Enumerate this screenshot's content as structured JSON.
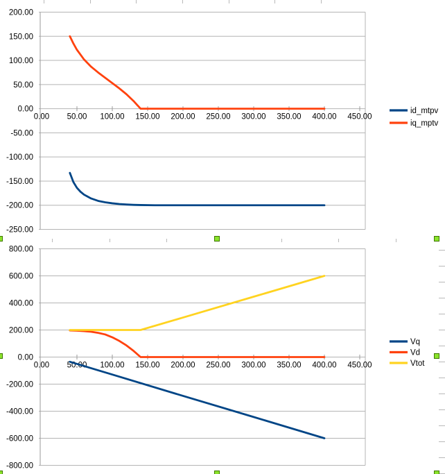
{
  "app_context": "spreadsheet-embedded-charts",
  "colors": {
    "series_blue": "#004586",
    "series_red": "#FF420E",
    "series_yellow": "#FFD320",
    "gridline": "#b4b4b4",
    "axis": "#9a9a9a",
    "label_text": "#000000",
    "sheet_gridline": "#b9b9b9",
    "handle_fill": "#8BE32C",
    "handle_border": "#3E7600"
  },
  "selection": {
    "selected_object": "bottom-chart-object",
    "handle_count": 8
  },
  "chart_data": [
    {
      "type": "line",
      "title": "",
      "xlabel": "",
      "ylabel": "",
      "grid": true,
      "legend_position": "right",
      "x_axis": {
        "min": 0,
        "max": 450,
        "tick_step": 50,
        "tick_labels": [
          "0.00",
          "50.00",
          "100.00",
          "150.00",
          "200.00",
          "250.00",
          "300.00",
          "350.00",
          "400.00",
          "450.00"
        ]
      },
      "y_axis": {
        "min": -250,
        "max": 200,
        "tick_step": 50,
        "tick_labels": [
          "200.00",
          "150.00",
          "100.00",
          "50.00",
          "0.00",
          "-50.00",
          "-100.00",
          "-150.00",
          "-200.00",
          "-250.00"
        ]
      },
      "series": [
        {
          "name": "id_mtpv",
          "color": "#004586",
          "x": [
            40,
            45,
            50,
            55,
            60,
            70,
            80,
            90,
            100,
            110,
            120,
            130,
            140,
            160,
            200,
            250,
            300,
            350,
            400
          ],
          "y": [
            -133,
            -152,
            -164,
            -172,
            -178,
            -186,
            -191,
            -194,
            -196,
            -197.5,
            -198.5,
            -199.2,
            -199.6,
            -200,
            -200,
            -200,
            -200,
            -200,
            -200
          ]
        },
        {
          "name": "iq_mptv",
          "color": "#FF420E",
          "x": [
            40,
            45,
            50,
            55,
            60,
            70,
            80,
            90,
            100,
            110,
            120,
            130,
            135,
            140,
            160,
            200,
            250,
            300,
            350,
            400
          ],
          "y": [
            150,
            135,
            122,
            112,
            102,
            87,
            75,
            64,
            53,
            42,
            30,
            16,
            8,
            0,
            0,
            0,
            0,
            0,
            0,
            0
          ]
        }
      ]
    },
    {
      "type": "line",
      "title": "",
      "xlabel": "",
      "ylabel": "",
      "grid": true,
      "legend_position": "right",
      "x_axis": {
        "min": 0,
        "max": 450,
        "tick_step": 50,
        "tick_labels": [
          "0.00",
          "50.00",
          "100.00",
          "150.00",
          "200.00",
          "250.00",
          "300.00",
          "350.00",
          "400.00",
          "450.00"
        ]
      },
      "y_axis": {
        "min": -800,
        "max": 800,
        "tick_step": 200,
        "tick_labels": [
          "800.00",
          "600.00",
          "400.00",
          "200.00",
          "0.00",
          "-200.00",
          "-400.00",
          "-600.00",
          "-800.00"
        ]
      },
      "series": [
        {
          "name": "Vq",
          "color": "#004586",
          "x": [
            40,
            100,
            200,
            300,
            400
          ],
          "y": [
            -35,
            -129,
            -287,
            -443,
            -600
          ]
        },
        {
          "name": "Vd",
          "color": "#FF420E",
          "x": [
            40,
            50,
            60,
            70,
            80,
            90,
            100,
            110,
            120,
            130,
            140,
            160,
            200,
            250,
            300,
            350,
            400
          ],
          "y": [
            197,
            195,
            192,
            187,
            179,
            167,
            146,
            119,
            86,
            46,
            0,
            0,
            0,
            0,
            0,
            0,
            0
          ]
        },
        {
          "name": "Vtot",
          "color": "#FFD320",
          "x": [
            40,
            100,
            140,
            200,
            300,
            400
          ],
          "y": [
            200,
            200,
            200,
            292,
            446,
            600
          ]
        }
      ]
    }
  ]
}
